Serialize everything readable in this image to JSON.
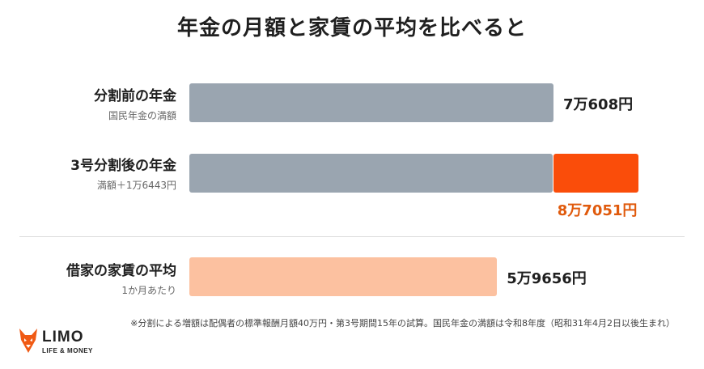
{
  "chart_data": {
    "type": "bar",
    "title": "年金の月額と家賃の平均を比べると",
    "unit": "円",
    "rows": [
      {
        "label": "分割前の年金",
        "sublabel": "国民年金の満額",
        "value": 70608,
        "value_label": "7万608円",
        "segments": [
          70608
        ]
      },
      {
        "label": "3号分割後の年金",
        "sublabel": "満額＋1万6443円",
        "value": 87051,
        "value_label": "8万7051円",
        "segments": [
          70608,
          16443
        ]
      },
      {
        "label": "借家の家賃の平均",
        "sublabel": "1か月あたり",
        "value": 59656,
        "value_label": "5万9656円",
        "segments": [
          59656
        ]
      }
    ],
    "colors": {
      "pension_base": "#9aa5b0",
      "split_increase": "#fa4d0a",
      "rent": "#fcc1a0",
      "accent_text": "#e05a0c"
    },
    "footnote": "※分割による増額は配偶者の標準報酬月額40万円・第3号期間15年の試算。国民年金の満額は令和8年度（昭和31年4月2日以後生まれ）"
  },
  "brand": {
    "name": "LIMO",
    "tagline": "LIFE & MONEY",
    "icon": "fox-logo-icon"
  }
}
